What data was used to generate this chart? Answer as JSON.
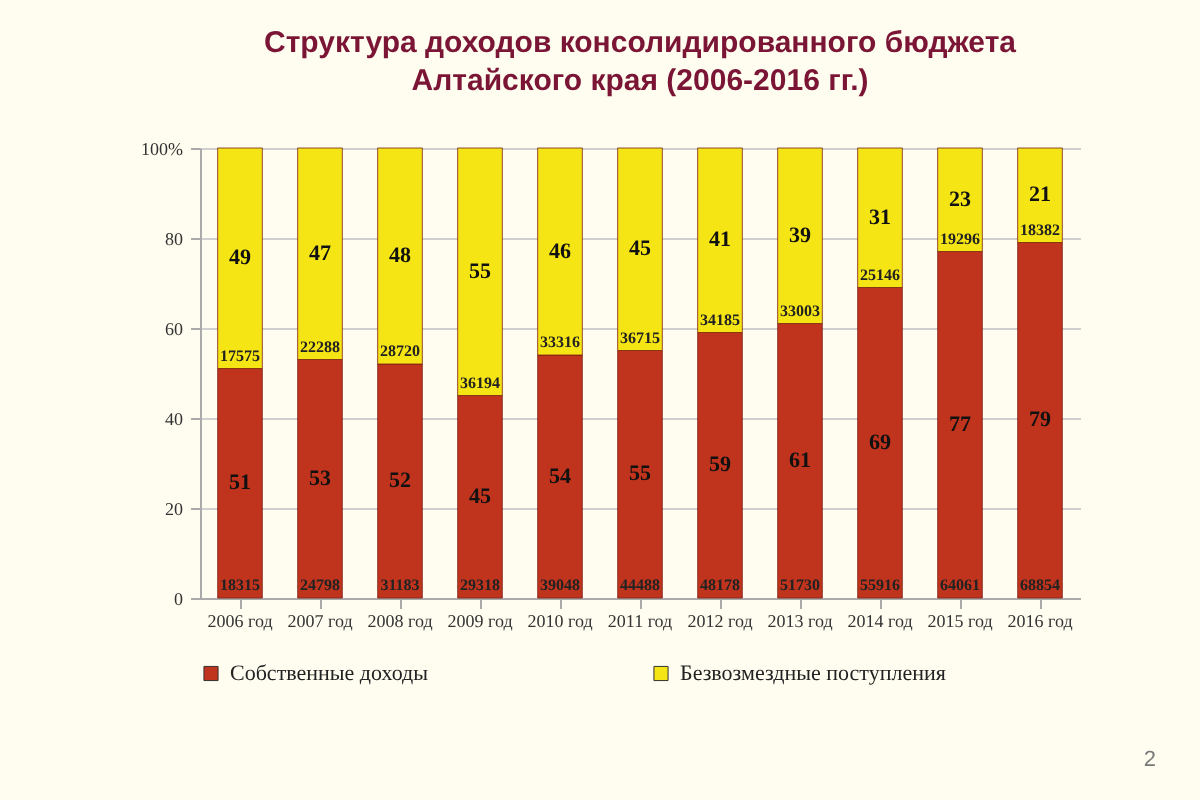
{
  "chart_data": {
    "type": "bar",
    "title": "Структура доходов консолидированного бюджета Алтайского края (2006-2016 гг.)",
    "categories": [
      "2006 год",
      "2007 год",
      "2008 год",
      "2009 год",
      "2010 год",
      "2011 год",
      "2012 год",
      "2013 год",
      "2014 год",
      "2015 год",
      "2016 год"
    ],
    "stacked": true,
    "series": [
      {
        "name": "Собственные доходы",
        "color": "#c0341d",
        "values": [
          51,
          53,
          52,
          45,
          54,
          55,
          59,
          61,
          69,
          77,
          79
        ]
      },
      {
        "name": "Безвозмездные поступления",
        "color": "#f5e514",
        "values": [
          49,
          47,
          48,
          55,
          46,
          45,
          41,
          39,
          31,
          23,
          21
        ]
      }
    ],
    "ylim": [
      0,
      100
    ],
    "yticks": [
      0,
      20,
      40,
      60,
      80,
      {
        "value": 100,
        "label": "100%"
      }
    ],
    "grid": "y",
    "legend": "bottom",
    "data_labels": true,
    "annotations": [
      {
        "text": "18315",
        "x": "2006 год",
        "y": 0
      },
      {
        "text": "24798",
        "x": "2007 год",
        "y": 0
      },
      {
        "text": "31183",
        "x": "2008 год",
        "y": 0
      },
      {
        "text": "29318",
        "x": "2009 год",
        "y": 0
      },
      {
        "text": "39048",
        "x": "2010 год",
        "y": 0
      },
      {
        "text": "44488",
        "x": "2011 год",
        "y": 0
      },
      {
        "text": "48178",
        "x": "2012 год",
        "y": 0
      },
      {
        "text": "51730",
        "x": "2013 год",
        "y": 0
      },
      {
        "text": "55916",
        "x": "2014 год",
        "y": 0
      },
      {
        "text": "64061",
        "x": "2015 год",
        "y": 0
      },
      {
        "text": "68854",
        "x": "2016 год",
        "y": 0
      },
      {
        "text": "17575",
        "x": "2006 год",
        "y": 51
      },
      {
        "text": "22288",
        "x": "2007 год",
        "y": 53
      },
      {
        "text": "28720",
        "x": "2008 год",
        "y": 52
      },
      {
        "text": "36194",
        "x": "2009 год",
        "y": 45
      },
      {
        "text": "33316",
        "x": "2010 год",
        "y": 54
      },
      {
        "text": "36715",
        "x": "2011 год",
        "y": 55
      },
      {
        "text": "34185",
        "x": "2012 год",
        "y": 59
      },
      {
        "text": "33003",
        "x": "2013 год",
        "y": 61
      },
      {
        "text": "25146",
        "x": "2014 год",
        "y": 69
      },
      {
        "text": "19296",
        "x": "2015 год",
        "y": 77
      },
      {
        "text": "18382",
        "x": "2016 год",
        "y": 79
      },
      "2"
    ]
  }
}
